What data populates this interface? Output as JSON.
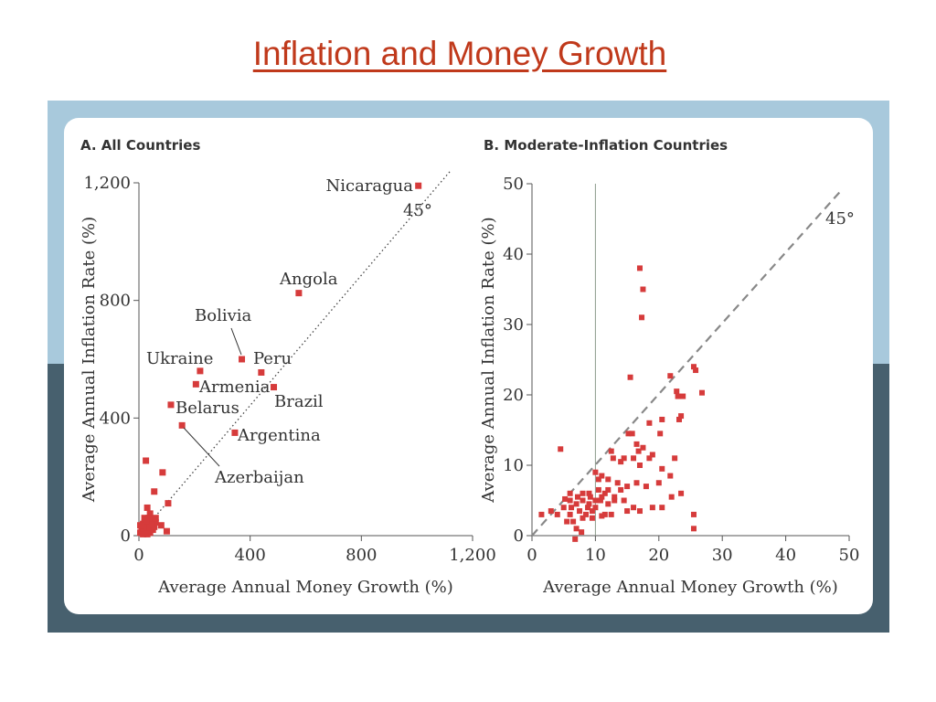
{
  "slide": {
    "title": "Inflation and Money Growth"
  },
  "colors": {
    "title": "#c0391b",
    "marker": "#d63b3b",
    "band_top": "#a8c9dc",
    "band_bottom": "#47606e"
  },
  "chart_data": [
    {
      "type": "scatter",
      "title": "A. All Countries",
      "xlabel": "Average Annual Money Growth (%)",
      "ylabel": "Average Annual Inflation Rate (%)",
      "xlim": [
        0,
        1200
      ],
      "ylim": [
        0,
        1200
      ],
      "xticks": [
        0,
        400,
        800,
        1200
      ],
      "xtick_labels": [
        "0",
        "400",
        "800",
        "1,200"
      ],
      "yticks": [
        0,
        400,
        800,
        1200
      ],
      "ytick_labels": [
        "0",
        "400",
        "800",
        "1,200"
      ],
      "reference_line": {
        "label": "45°",
        "style": "dotted"
      },
      "labeled_points": [
        {
          "name": "Nicaragua",
          "x": 1005,
          "y": 1190
        },
        {
          "name": "Angola",
          "x": 575,
          "y": 825
        },
        {
          "name": "Bolivia",
          "x": 370,
          "y": 600
        },
        {
          "name": "Peru",
          "x": 440,
          "y": 555
        },
        {
          "name": "Ukraine",
          "x": 220,
          "y": 560
        },
        {
          "name": "Armenia",
          "x": 205,
          "y": 515
        },
        {
          "name": "Brazil",
          "x": 485,
          "y": 505
        },
        {
          "name": "Belarus",
          "x": 115,
          "y": 445
        },
        {
          "name": "Argentina",
          "x": 345,
          "y": 350
        },
        {
          "name": "Azerbaijan",
          "x": 155,
          "y": 375
        }
      ],
      "points": [
        [
          25,
          255
        ],
        [
          85,
          215
        ],
        [
          55,
          150
        ],
        [
          105,
          110
        ],
        [
          80,
          35
        ],
        [
          100,
          15
        ],
        [
          30,
          95
        ],
        [
          40,
          75
        ],
        [
          20,
          60
        ],
        [
          45,
          55
        ],
        [
          15,
          40
        ],
        [
          60,
          45
        ],
        [
          10,
          30
        ],
        [
          35,
          35
        ],
        [
          50,
          20
        ],
        [
          25,
          15
        ],
        [
          5,
          10
        ],
        [
          15,
          5
        ],
        [
          40,
          10
        ],
        [
          30,
          25
        ],
        [
          20,
          45
        ],
        [
          55,
          30
        ],
        [
          10,
          20
        ],
        [
          45,
          40
        ],
        [
          35,
          60
        ],
        [
          25,
          50
        ],
        [
          60,
          60
        ],
        [
          15,
          25
        ],
        [
          5,
          35
        ],
        [
          30,
          5
        ]
      ]
    },
    {
      "type": "scatter",
      "title": "B. Moderate-Inflation Countries",
      "xlabel": "Average Annual Money Growth (%)",
      "ylabel": "Average Annual Inflation Rate (%)",
      "xlim": [
        0,
        50
      ],
      "ylim": [
        0,
        50
      ],
      "xticks": [
        0,
        10,
        20,
        30,
        40,
        50
      ],
      "xtick_labels": [
        "0",
        "10",
        "20",
        "30",
        "40",
        "50"
      ],
      "yticks": [
        0,
        10,
        20,
        30,
        40,
        50
      ],
      "ytick_labels": [
        "0",
        "10",
        "20",
        "30",
        "40",
        "50"
      ],
      "reference_line": {
        "label": "45°",
        "style": "dashed"
      },
      "points": [
        [
          17,
          38
        ],
        [
          17.5,
          35
        ],
        [
          17.3,
          31
        ],
        [
          15.5,
          22.5
        ],
        [
          25.5,
          24
        ],
        [
          25.8,
          23.5
        ],
        [
          21.8,
          22.7
        ],
        [
          22.8,
          20.5
        ],
        [
          23,
          19.8
        ],
        [
          26.8,
          20.3
        ],
        [
          23.8,
          19.8
        ],
        [
          23.5,
          17
        ],
        [
          23.2,
          16.5
        ],
        [
          20.5,
          16.5
        ],
        [
          18.5,
          16
        ],
        [
          4.5,
          12.3
        ],
        [
          15.2,
          14.5
        ],
        [
          15.8,
          14.5
        ],
        [
          16.5,
          13
        ],
        [
          17.5,
          12.5
        ],
        [
          16.8,
          12
        ],
        [
          12.5,
          12
        ],
        [
          12.8,
          11
        ],
        [
          14.5,
          11
        ],
        [
          14,
          10.5
        ],
        [
          16,
          11
        ],
        [
          17,
          10
        ],
        [
          18.5,
          11
        ],
        [
          19,
          11.5
        ],
        [
          20.2,
          14.5
        ],
        [
          22.5,
          11
        ],
        [
          20.5,
          9.5
        ],
        [
          10,
          9
        ],
        [
          10.5,
          8
        ],
        [
          11,
          8.5
        ],
        [
          12,
          8
        ],
        [
          13.5,
          7.5
        ],
        [
          15,
          7
        ],
        [
          16.5,
          7.5
        ],
        [
          18,
          7
        ],
        [
          20,
          7.5
        ],
        [
          21.8,
          8.5
        ],
        [
          22,
          5.5
        ],
        [
          23.5,
          6
        ],
        [
          25.5,
          3
        ],
        [
          25.5,
          1
        ],
        [
          20.5,
          4
        ],
        [
          19,
          4
        ],
        [
          17,
          3.5
        ],
        [
          16,
          4
        ],
        [
          15,
          3.5
        ],
        [
          14.5,
          5
        ],
        [
          13,
          5
        ],
        [
          12,
          4.5
        ],
        [
          11,
          5.5
        ],
        [
          10,
          5
        ],
        [
          9,
          4.5
        ],
        [
          8,
          5
        ],
        [
          7,
          4.5
        ],
        [
          6,
          5
        ],
        [
          5,
          4
        ],
        [
          4,
          3
        ],
        [
          3,
          3.5
        ],
        [
          1.5,
          3
        ],
        [
          6.5,
          2
        ],
        [
          7,
          1
        ],
        [
          6.8,
          -0.5
        ],
        [
          8,
          2.5
        ],
        [
          9.5,
          3.5
        ],
        [
          10.5,
          6.5
        ],
        [
          11.5,
          6
        ],
        [
          9,
          6
        ],
        [
          8,
          6
        ],
        [
          6,
          6
        ],
        [
          12.5,
          3
        ],
        [
          11.5,
          3
        ],
        [
          10,
          4
        ],
        [
          8.5,
          3
        ],
        [
          7.5,
          3.5
        ],
        [
          6,
          3
        ],
        [
          5.5,
          2
        ],
        [
          7.8,
          0.5
        ],
        [
          9.5,
          2.5
        ],
        [
          11,
          2.8
        ],
        [
          13,
          5.5
        ],
        [
          14,
          6.5
        ],
        [
          12,
          6.5
        ],
        [
          10.8,
          5
        ],
        [
          9.2,
          5.5
        ],
        [
          7.2,
          5.5
        ],
        [
          5.2,
          5.2
        ],
        [
          8.8,
          4
        ],
        [
          6.2,
          4
        ]
      ]
    }
  ]
}
